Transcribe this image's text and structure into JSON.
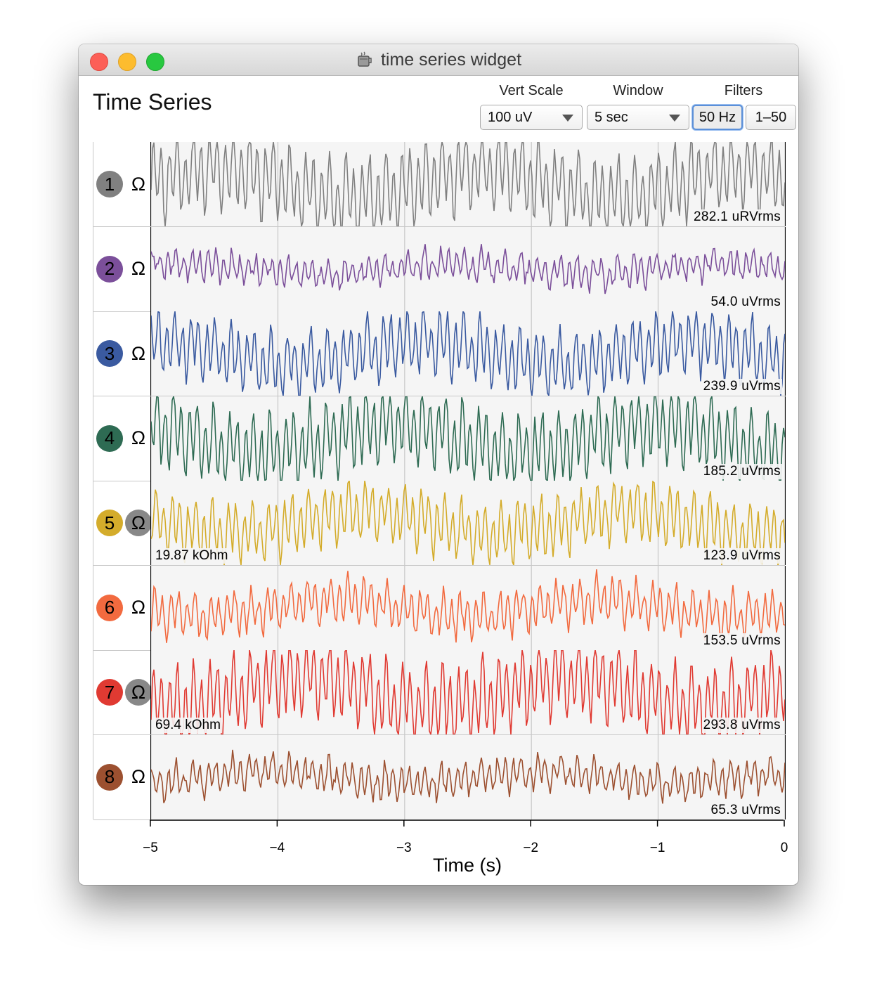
{
  "window": {
    "title": "time series widget",
    "icon": "java-cup-icon"
  },
  "heading": "Time Series",
  "controls": {
    "vert_scale": {
      "label": "Vert Scale",
      "value": "100 uV"
    },
    "window": {
      "label": "Window",
      "value": "5 sec"
    },
    "filters": {
      "label": "Filters",
      "notch": "50 Hz",
      "bandpass": "1–50"
    }
  },
  "ohm_symbol": "Ω",
  "channels": [
    {
      "number": "1",
      "color": "#808080",
      "rms": "282.1 uRVrms",
      "impedance": "",
      "ohm_active": false
    },
    {
      "number": "2",
      "color": "#7b4f9a",
      "rms": "54.0 uVrms",
      "impedance": "",
      "ohm_active": false
    },
    {
      "number": "3",
      "color": "#3a5aa0",
      "rms": "239.9 uVrms",
      "impedance": "",
      "ohm_active": false
    },
    {
      "number": "4",
      "color": "#2e6b53",
      "rms": "185.2 uVrms",
      "impedance": "",
      "ohm_active": false
    },
    {
      "number": "5",
      "color": "#d4ac2b",
      "rms": "123.9 uVrms",
      "impedance": "19.87 kOhm",
      "ohm_active": true
    },
    {
      "number": "6",
      "color": "#f26a3f",
      "rms": "153.5 uVrms",
      "impedance": "",
      "ohm_active": false
    },
    {
      "number": "7",
      "color": "#e03a32",
      "rms": "293.8 uVrms",
      "impedance": "69.4 kOhm",
      "ohm_active": true
    },
    {
      "number": "8",
      "color": "#9c5030",
      "rms": "65.3 uVrms",
      "impedance": "",
      "ohm_active": false
    }
  ],
  "chart_data": {
    "type": "line",
    "xlabel": "Time (s)",
    "x_ticks": [
      "−5",
      "−4",
      "−3",
      "−2",
      "−1",
      "0"
    ],
    "xlim": [
      -5,
      0
    ],
    "grid": true,
    "series": [
      {
        "name": "1",
        "amplitude": 1.0
      },
      {
        "name": "2",
        "amplitude": 0.35
      },
      {
        "name": "3",
        "amplitude": 0.8
      },
      {
        "name": "4",
        "amplitude": 0.95
      },
      {
        "name": "5",
        "amplitude": 0.75
      },
      {
        "name": "6",
        "amplitude": 0.55
      },
      {
        "name": "7",
        "amplitude": 1.0
      },
      {
        "name": "8",
        "amplitude": 0.4
      }
    ]
  }
}
